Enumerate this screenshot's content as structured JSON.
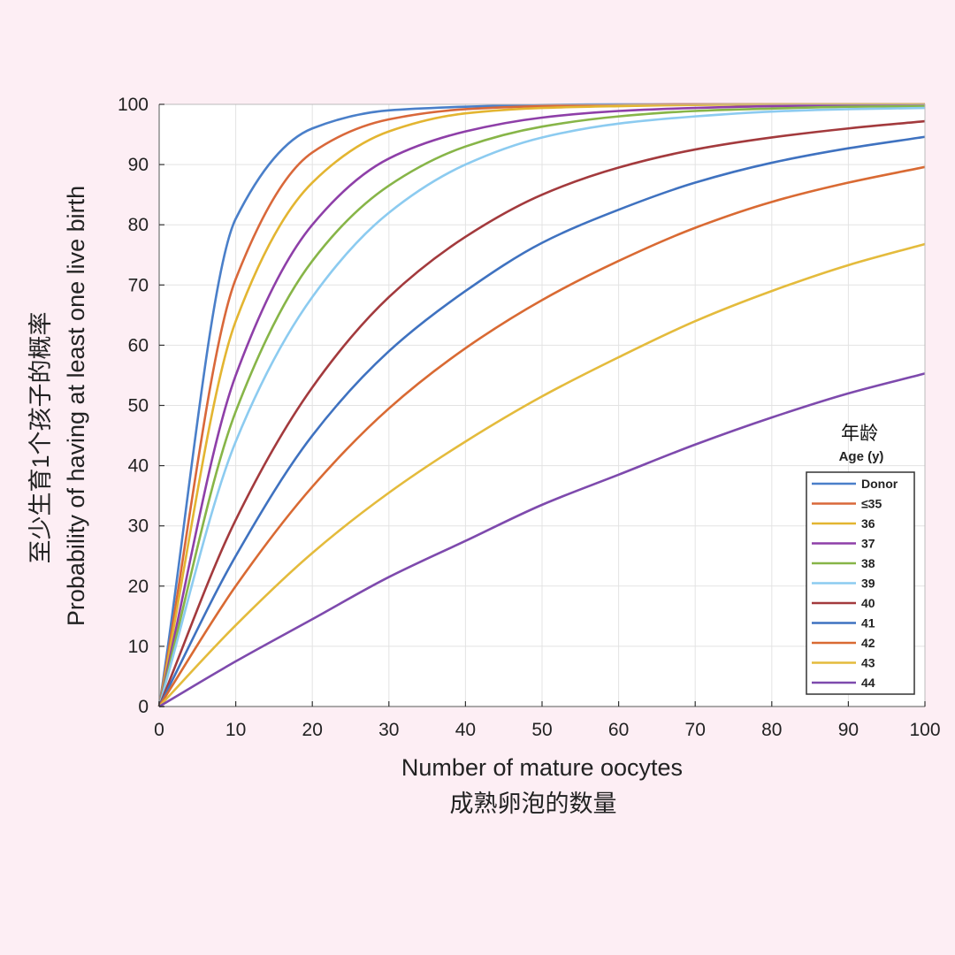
{
  "chart_data": {
    "type": "line",
    "title": "",
    "xlabel": "Number of mature oocytes",
    "xlabel_cn": "成熟卵泡的数量",
    "ylabel": "Probability of having at least one live birth",
    "ylabel_cn": "至少生育1个孩子的概率",
    "xlim": [
      0,
      100
    ],
    "ylim": [
      0,
      100
    ],
    "xticks": [
      0,
      10,
      20,
      30,
      40,
      50,
      60,
      70,
      80,
      90,
      100
    ],
    "yticks": [
      0,
      10,
      20,
      30,
      40,
      50,
      60,
      70,
      80,
      90,
      100
    ],
    "grid": true,
    "legend": {
      "title_cn": "年龄",
      "title": "Age (y)",
      "placement": "lower-right"
    },
    "x": [
      0,
      10,
      20,
      30,
      40,
      50,
      60,
      70,
      80,
      90,
      100
    ],
    "series": [
      {
        "name": "Donor",
        "color": "#4a7fc9",
        "values": [
          0,
          81,
          96,
          99,
          99.6,
          99.9,
          100,
          100,
          100,
          100,
          100
        ]
      },
      {
        "name": "≤35",
        "color": "#d9683a",
        "values": [
          0,
          71,
          92,
          97.5,
          99.2,
          99.7,
          99.9,
          100,
          100,
          100,
          100
        ]
      },
      {
        "name": "36",
        "color": "#e3b531",
        "values": [
          0,
          64,
          87,
          95.5,
          98.5,
          99.4,
          99.7,
          99.9,
          100,
          100,
          100
        ]
      },
      {
        "name": "37",
        "color": "#8e3fa8",
        "values": [
          0,
          55,
          80,
          91,
          95.5,
          97.8,
          98.9,
          99.4,
          99.7,
          99.8,
          99.9
        ]
      },
      {
        "name": "38",
        "color": "#87b548",
        "values": [
          0,
          49,
          74,
          86.5,
          93,
          96.3,
          98,
          98.9,
          99.3,
          99.6,
          99.7
        ]
      },
      {
        "name": "39",
        "color": "#8ccbf0",
        "values": [
          0,
          44,
          68,
          82,
          90,
          94.5,
          96.8,
          98,
          98.8,
          99.2,
          99.4
        ]
      },
      {
        "name": "40",
        "color": "#a33a3d",
        "values": [
          0,
          31,
          53,
          68,
          78,
          85,
          89.5,
          92.5,
          94.5,
          96,
          97.2
        ]
      },
      {
        "name": "41",
        "color": "#3f72c0",
        "values": [
          0,
          25,
          45,
          59,
          69,
          77,
          82.5,
          87,
          90.3,
          92.7,
          94.6
        ]
      },
      {
        "name": "42",
        "color": "#d96a33",
        "values": [
          0,
          20,
          36.5,
          49.5,
          59.5,
          67.5,
          74,
          79.5,
          83.8,
          87,
          89.6
        ]
      },
      {
        "name": "43",
        "color": "#e4bb3c",
        "values": [
          0,
          13.5,
          25.5,
          35.5,
          44,
          51.5,
          58,
          64,
          69,
          73.3,
          76.8
        ]
      },
      {
        "name": "44",
        "color": "#7e4aad",
        "values": [
          0,
          7.5,
          14.5,
          21.5,
          27.5,
          33.5,
          38.5,
          43.5,
          48,
          52,
          55.3
        ]
      }
    ]
  }
}
